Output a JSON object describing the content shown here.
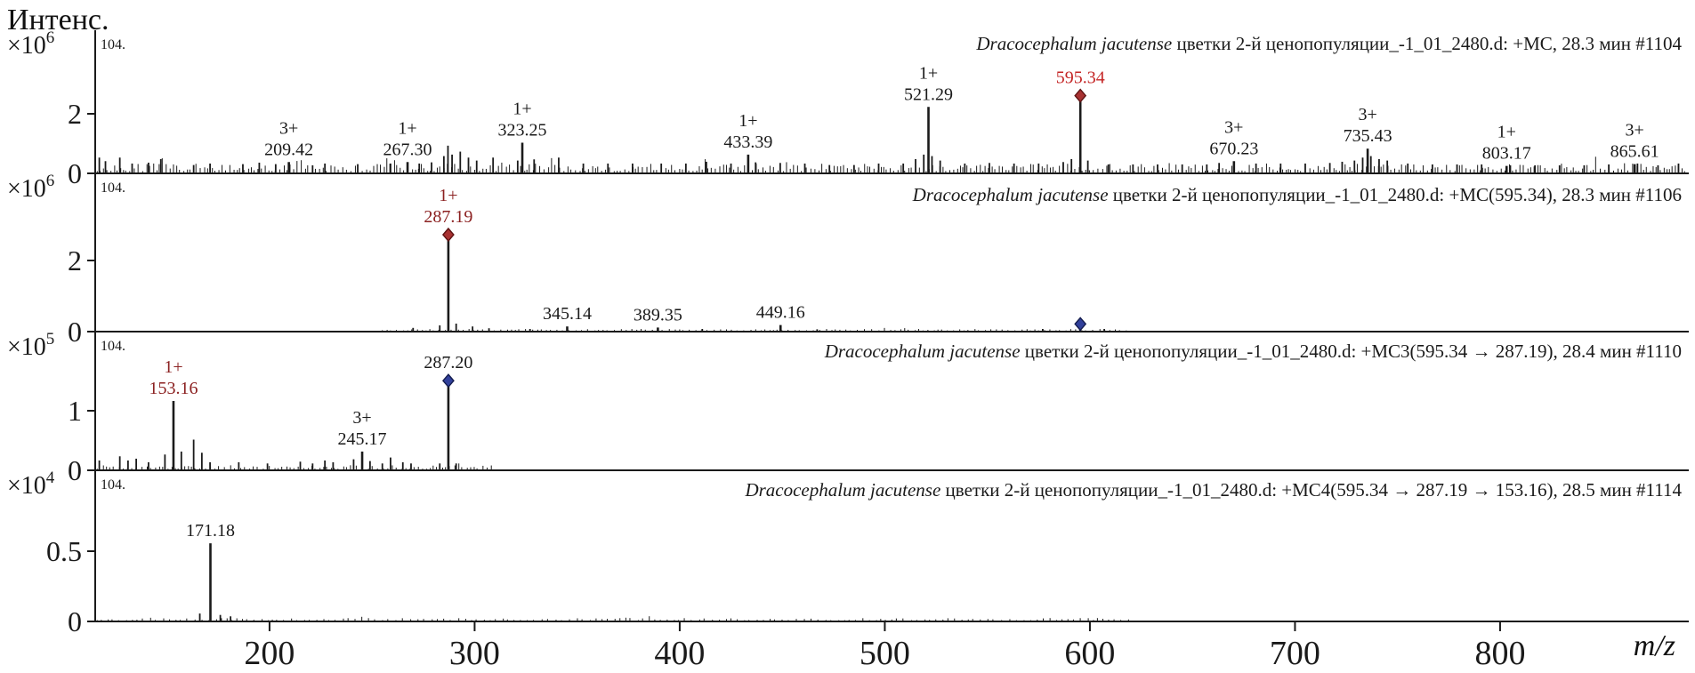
{
  "figure": {
    "ylabel": "Интенс.",
    "xlabel": "m/z"
  },
  "axis": {
    "x_tick_values": [
      200,
      300,
      400,
      500,
      600,
      700,
      800
    ],
    "xlim": [
      115,
      892
    ]
  },
  "colors": {
    "ink": "#1a1a1a",
    "red_label": "#c42525",
    "maroon_label": "#8b2020",
    "red_diamond_fill": "#a83232",
    "red_diamond_stroke": "#5e1212",
    "blue_diamond_fill": "#31409b",
    "blue_diamond_stroke": "#141c4e"
  },
  "chart_data": [
    {
      "type": "bar",
      "panel": 1,
      "title_italic": "Dracocephalum jacutense",
      "title_rest": " цветки 2-й ценопопуляции_-1_01_2480.d: +МС, 28.3 мин #1104",
      "corner_label": "104.",
      "scale_base": "×10",
      "scale_exp": "6",
      "xlim": [
        115,
        892
      ],
      "ylim": [
        0,
        4.7
      ],
      "y_ticks": [
        {
          "value": 2,
          "label": "2"
        },
        {
          "value": 0,
          "label": "0"
        }
      ],
      "peaks": [
        {
          "mz": 209.42,
          "h": 0.35,
          "label": "209.42",
          "charge": "3+"
        },
        {
          "mz": 267.3,
          "h": 0.35,
          "label": "267.30",
          "charge": "1+"
        },
        {
          "mz": 323.25,
          "h": 1.0,
          "label": "323.25",
          "charge": "1+"
        },
        {
          "mz": 433.39,
          "h": 0.6,
          "label": "433.39",
          "charge": "1+"
        },
        {
          "mz": 521.29,
          "h": 2.2,
          "label": "521.29",
          "charge": "1+"
        },
        {
          "mz": 595.34,
          "h": 2.4,
          "label": "595.34",
          "label_color": "red",
          "marker": "red-diamond"
        },
        {
          "mz": 670.23,
          "h": 0.38,
          "label": "670.23",
          "charge": "3+"
        },
        {
          "mz": 735.43,
          "h": 0.8,
          "label": "735.43",
          "charge": "3+"
        },
        {
          "mz": 803.17,
          "h": 0.22,
          "label": "803.17",
          "charge": "1+"
        },
        {
          "mz": 865.61,
          "h": 0.28,
          "label": "865.61",
          "charge": "3+"
        }
      ],
      "minor_peaks": [
        [
          117,
          0.5
        ],
        [
          120,
          0.38
        ],
        [
          127,
          0.5
        ],
        [
          133,
          0.3
        ],
        [
          141,
          0.33
        ],
        [
          147,
          0.45
        ],
        [
          163,
          0.25
        ],
        [
          171,
          0.3
        ],
        [
          187,
          0.28
        ],
        [
          195,
          0.33
        ],
        [
          203,
          0.28
        ],
        [
          221,
          0.24
        ],
        [
          227,
          0.3
        ],
        [
          243,
          0.28
        ],
        [
          259,
          0.3
        ],
        [
          273,
          0.3
        ],
        [
          279,
          0.34
        ],
        [
          285,
          0.55
        ],
        [
          287,
          0.9
        ],
        [
          289,
          0.6
        ],
        [
          293,
          0.7
        ],
        [
          297,
          0.5
        ],
        [
          301,
          0.4
        ],
        [
          309,
          0.5
        ],
        [
          321,
          0.4
        ],
        [
          329,
          0.44
        ],
        [
          341,
          0.5
        ],
        [
          353,
          0.3
        ],
        [
          365,
          0.3
        ],
        [
          377,
          0.3
        ],
        [
          391,
          0.3
        ],
        [
          403,
          0.3
        ],
        [
          413,
          0.36
        ],
        [
          425,
          0.3
        ],
        [
          437,
          0.34
        ],
        [
          449,
          0.32
        ],
        [
          461,
          0.3
        ],
        [
          473,
          0.25
        ],
        [
          485,
          0.25
        ],
        [
          497,
          0.3
        ],
        [
          509,
          0.3
        ],
        [
          515,
          0.45
        ],
        [
          519,
          0.6
        ],
        [
          523,
          0.55
        ],
        [
          527,
          0.4
        ],
        [
          539,
          0.3
        ],
        [
          551,
          0.32
        ],
        [
          563,
          0.3
        ],
        [
          575,
          0.3
        ],
        [
          587,
          0.35
        ],
        [
          591,
          0.45
        ],
        [
          599,
          0.4
        ],
        [
          609,
          0.27
        ],
        [
          621,
          0.27
        ],
        [
          633,
          0.27
        ],
        [
          645,
          0.27
        ],
        [
          657,
          0.27
        ],
        [
          663,
          0.32
        ],
        [
          681,
          0.3
        ],
        [
          693,
          0.3
        ],
        [
          705,
          0.3
        ],
        [
          717,
          0.32
        ],
        [
          723,
          0.36
        ],
        [
          729,
          0.4
        ],
        [
          733,
          0.5
        ],
        [
          737,
          0.55
        ],
        [
          741,
          0.45
        ],
        [
          745,
          0.4
        ],
        [
          755,
          0.3
        ],
        [
          767,
          0.27
        ],
        [
          779,
          0.27
        ],
        [
          791,
          0.27
        ],
        [
          805,
          0.24
        ],
        [
          817,
          0.24
        ],
        [
          829,
          0.24
        ],
        [
          841,
          0.24
        ],
        [
          853,
          0.27
        ],
        [
          867,
          0.3
        ],
        [
          877,
          0.24
        ],
        [
          887,
          0.3
        ]
      ],
      "noise": {
        "amp": 0.3,
        "from": 116,
        "to": 890,
        "step": 1.7,
        "seed": 11
      }
    },
    {
      "type": "bar",
      "panel": 2,
      "title_italic": "Dracocephalum jacutense",
      "title_rest": " цветки 2-й ценопопуляции_-1_01_2480.d: +МС(595.34), 28.3 мин #1106",
      "corner_label": "104.",
      "scale_base": "×10",
      "scale_exp": "6",
      "xlim": [
        115,
        892
      ],
      "ylim": [
        0,
        4.4
      ],
      "y_ticks": [
        {
          "value": 2,
          "label": "2"
        },
        {
          "value": 0,
          "label": "0"
        }
      ],
      "peaks": [
        {
          "mz": 287.19,
          "h": 2.55,
          "label": "287.19",
          "charge": "1+",
          "label_color": "maroon",
          "marker": "red-diamond"
        },
        {
          "mz": 345.14,
          "h": 0.12,
          "label": "345.14"
        },
        {
          "mz": 389.35,
          "h": 0.09,
          "label": "389.35"
        },
        {
          "mz": 449.16,
          "h": 0.16,
          "label": "449.16"
        },
        {
          "mz": 595.34,
          "h": 0.04,
          "marker": "blue-diamond"
        }
      ],
      "minor_peaks": [
        [
          270,
          0.08
        ],
        [
          283,
          0.15
        ],
        [
          291,
          0.2
        ],
        [
          299,
          0.12
        ],
        [
          307,
          0.07
        ],
        [
          327,
          0.05
        ],
        [
          411,
          0.05
        ],
        [
          467,
          0.04
        ],
        [
          577,
          0.05
        ],
        [
          607,
          0.05
        ]
      ],
      "noise": {
        "amp": 0.05,
        "from": 255,
        "to": 620,
        "step": 2.6,
        "seed": 23
      }
    },
    {
      "type": "bar",
      "panel": 3,
      "title_italic": "Dracocephalum jacutense",
      "title_rest": " цветки 2-й ценопопуляции_-1_01_2480.d: +МС3(595.34 → 287.19), 28.4 мин #1110",
      "corner_label": "104.",
      "scale_base": "×10",
      "scale_exp": "5",
      "xlim": [
        115,
        892
      ],
      "ylim": [
        0,
        2.33
      ],
      "y_ticks": [
        {
          "value": 1,
          "label": "1"
        },
        {
          "value": 0,
          "label": "0"
        }
      ],
      "peaks": [
        {
          "mz": 153.16,
          "h": 1.15,
          "label": "153.16",
          "charge": "1+",
          "label_color": "maroon"
        },
        {
          "mz": 245.17,
          "h": 0.3,
          "label": "245.17",
          "charge": "3+"
        },
        {
          "mz": 287.2,
          "h": 1.4,
          "label": "287.20",
          "marker": "blue-diamond"
        }
      ],
      "minor_peaks": [
        [
          117,
          0.15
        ],
        [
          127,
          0.22
        ],
        [
          131,
          0.15
        ],
        [
          135,
          0.18
        ],
        [
          141,
          0.12
        ],
        [
          149,
          0.25
        ],
        [
          157,
          0.3
        ],
        [
          163,
          0.5
        ],
        [
          167,
          0.28
        ],
        [
          171,
          0.12
        ],
        [
          185,
          0.12
        ],
        [
          199,
          0.1
        ],
        [
          215,
          0.13
        ],
        [
          221,
          0.1
        ],
        [
          227,
          0.15
        ],
        [
          231,
          0.12
        ],
        [
          241,
          0.17
        ],
        [
          249,
          0.14
        ],
        [
          255,
          0.1
        ],
        [
          259,
          0.2
        ],
        [
          265,
          0.12
        ],
        [
          269,
          0.1
        ],
        [
          283,
          0.1
        ],
        [
          291,
          0.1
        ]
      ],
      "noise": {
        "amp": 0.07,
        "from": 116,
        "to": 310,
        "step": 2.2,
        "seed": 37
      }
    },
    {
      "type": "bar",
      "panel": 4,
      "title_italic": "Dracocephalum jacutense",
      "title_rest": " цветки 2-й ценопопуляции_-1_01_2480.d: +МС4(595.34 → 287.19 → 153.16), 28.5 мин #1114",
      "corner_label": "104.",
      "scale_base": "×10",
      "scale_exp": "4",
      "xlim": [
        115,
        892
      ],
      "ylim": [
        0,
        1.06
      ],
      "y_ticks": [
        {
          "value": 0.5,
          "label": "0.5"
        },
        {
          "value": 0,
          "label": "0"
        }
      ],
      "peaks": [
        {
          "mz": 171.18,
          "h": 0.55,
          "label": "171.18"
        }
      ],
      "minor_peaks": [
        [
          166,
          0.05
        ],
        [
          176,
          0.04
        ],
        [
          181,
          0.03
        ]
      ],
      "noise": {
        "amp": 0.018,
        "from": 116,
        "to": 620,
        "step": 3.1,
        "seed": 53
      }
    }
  ]
}
